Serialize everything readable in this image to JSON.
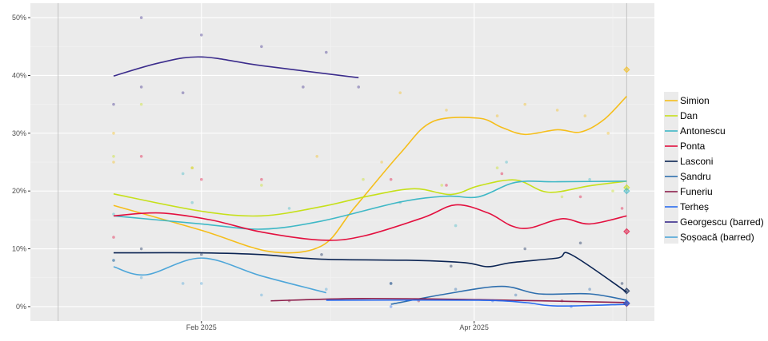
{
  "chart_data": {
    "type": "line",
    "title": "",
    "xlabel": "",
    "ylabel": "",
    "ylim": [
      -2.5,
      52.5
    ],
    "xlim": [
      "2024-12-26",
      "2025-05-10"
    ],
    "grid": true,
    "legend_position": "right",
    "y_ticks": [
      {
        "v": 0,
        "label": "0%"
      },
      {
        "v": 10,
        "label": "10%"
      },
      {
        "v": 20,
        "label": "20%"
      },
      {
        "v": 30,
        "label": "30%"
      },
      {
        "v": 40,
        "label": "40%"
      },
      {
        "v": 50,
        "label": "50%"
      }
    ],
    "x_ticks": [
      {
        "date": "2025-02-01",
        "label": "Feb 2025"
      },
      {
        "date": "2025-04-01",
        "label": "Apr 2025"
      }
    ],
    "vertical_markers": [
      "2025-01-01",
      "2025-05-04"
    ],
    "series": [
      {
        "name": "Simion",
        "color": "#f5be1b",
        "trend": [
          [
            "2025-01-13",
            17.5
          ],
          [
            "2025-02-01",
            13.2
          ],
          [
            "2025-02-16",
            9.5
          ],
          [
            "2025-02-27",
            10.5
          ],
          [
            "2025-03-06",
            17
          ],
          [
            "2025-03-16",
            26.5
          ],
          [
            "2025-03-23",
            32
          ],
          [
            "2025-04-02",
            32.6
          ],
          [
            "2025-04-07",
            31
          ],
          [
            "2025-04-12",
            29.8
          ],
          [
            "2025-04-19",
            30.6
          ],
          [
            "2025-04-24",
            30.2
          ],
          [
            "2025-04-29",
            32.3
          ],
          [
            "2025-05-04",
            36.4
          ]
        ],
        "points": [
          [
            "2025-01-13",
            30
          ],
          [
            "2025-01-13",
            25
          ],
          [
            "2025-01-30",
            24
          ],
          [
            "2025-02-26",
            26
          ],
          [
            "2025-03-12",
            25
          ],
          [
            "2025-03-16",
            37
          ],
          [
            "2025-03-26",
            34
          ],
          [
            "2025-04-06",
            33
          ],
          [
            "2025-04-12",
            35
          ],
          [
            "2025-04-19",
            34
          ],
          [
            "2025-04-25",
            33
          ],
          [
            "2025-04-30",
            30
          ]
        ],
        "result": 41
      },
      {
        "name": "Dan",
        "color": "#c6e01a",
        "trend": [
          [
            "2025-01-13",
            19.5
          ],
          [
            "2025-02-01",
            16.5
          ],
          [
            "2025-02-14",
            15.7
          ],
          [
            "2025-02-27",
            17.3
          ],
          [
            "2025-03-09",
            19.1
          ],
          [
            "2025-03-19",
            20.4
          ],
          [
            "2025-03-27",
            19.4
          ],
          [
            "2025-04-02",
            20.9
          ],
          [
            "2025-04-10",
            21.9
          ],
          [
            "2025-04-17",
            19.8
          ],
          [
            "2025-04-26",
            20.9
          ],
          [
            "2025-05-04",
            21.7
          ]
        ],
        "points": [
          [
            "2025-01-13",
            26
          ],
          [
            "2025-01-19",
            35
          ],
          [
            "2025-01-30",
            24
          ],
          [
            "2025-02-14",
            21
          ],
          [
            "2025-03-08",
            22
          ],
          [
            "2025-03-25",
            21
          ],
          [
            "2025-04-06",
            24
          ],
          [
            "2025-04-20",
            19
          ],
          [
            "2025-05-01",
            20
          ]
        ],
        "result": 20.6
      },
      {
        "name": "Antonescu",
        "color": "#3fb8c6",
        "trend": [
          [
            "2025-01-13",
            15.7
          ],
          [
            "2025-02-01",
            14.3
          ],
          [
            "2025-02-14",
            13.4
          ],
          [
            "2025-02-27",
            14.8
          ],
          [
            "2025-03-16",
            18.1
          ],
          [
            "2025-03-26",
            19.1
          ],
          [
            "2025-04-02",
            19
          ],
          [
            "2025-04-10",
            21.5
          ],
          [
            "2025-04-19",
            21.6
          ],
          [
            "2025-05-04",
            21.7
          ]
        ],
        "points": [
          [
            "2025-01-13",
            16
          ],
          [
            "2025-01-28",
            23
          ],
          [
            "2025-01-30",
            18
          ],
          [
            "2025-02-20",
            17
          ],
          [
            "2025-03-16",
            18
          ],
          [
            "2025-03-28",
            14
          ],
          [
            "2025-04-08",
            25
          ],
          [
            "2025-04-26",
            22
          ]
        ],
        "result": 20
      },
      {
        "name": "Ponta",
        "color": "#e3103f",
        "trend": [
          [
            "2025-01-13",
            15.7
          ],
          [
            "2025-01-23",
            16.2
          ],
          [
            "2025-02-03",
            15
          ],
          [
            "2025-02-14",
            12.9
          ],
          [
            "2025-02-27",
            11.5
          ],
          [
            "2025-03-08",
            12.2
          ],
          [
            "2025-03-21",
            15.4
          ],
          [
            "2025-03-28",
            17.6
          ],
          [
            "2025-04-04",
            16.2
          ],
          [
            "2025-04-09",
            14
          ],
          [
            "2025-04-13",
            13.6
          ],
          [
            "2025-04-20",
            15.2
          ],
          [
            "2025-04-26",
            14.3
          ],
          [
            "2025-05-04",
            15.7
          ]
        ],
        "points": [
          [
            "2025-01-13",
            12
          ],
          [
            "2025-01-19",
            26
          ],
          [
            "2025-02-01",
            22
          ],
          [
            "2025-02-14",
            22
          ],
          [
            "2025-03-14",
            22
          ],
          [
            "2025-03-26",
            21
          ],
          [
            "2025-04-07",
            23
          ],
          [
            "2025-04-24",
            19
          ],
          [
            "2025-05-03",
            17
          ]
        ],
        "result": 13
      },
      {
        "name": "Lasconi",
        "color": "#0b2453",
        "trend": [
          [
            "2025-01-13",
            9.3
          ],
          [
            "2025-02-01",
            9.3
          ],
          [
            "2025-02-14",
            9.0
          ],
          [
            "2025-02-27",
            8.2
          ],
          [
            "2025-03-19",
            8.0
          ],
          [
            "2025-03-30",
            7.6
          ],
          [
            "2025-04-04",
            6.9
          ],
          [
            "2025-04-09",
            7.6
          ],
          [
            "2025-04-19",
            8.4
          ],
          [
            "2025-04-22",
            9.0
          ],
          [
            "2025-05-04",
            2.5
          ]
        ],
        "points": [
          [
            "2025-01-13",
            8
          ],
          [
            "2025-01-19",
            10
          ],
          [
            "2025-02-01",
            9
          ],
          [
            "2025-02-27",
            9
          ],
          [
            "2025-03-14",
            4
          ],
          [
            "2025-03-27",
            7
          ],
          [
            "2025-04-12",
            10
          ],
          [
            "2025-04-24",
            11
          ],
          [
            "2025-05-03",
            4
          ]
        ],
        "result": 2.7
      },
      {
        "name": "Șandru",
        "color": "#2f6fae",
        "trend": [
          [
            "2025-03-14",
            0.4
          ],
          [
            "2025-03-26",
            2.2
          ],
          [
            "2025-04-07",
            3.5
          ],
          [
            "2025-04-15",
            2.2
          ],
          [
            "2025-04-26",
            2.2
          ],
          [
            "2025-05-04",
            1.1
          ]
        ],
        "points": [
          [
            "2025-03-14",
            4
          ],
          [
            "2025-03-28",
            3
          ],
          [
            "2025-04-10",
            2
          ],
          [
            "2025-04-26",
            3
          ]
        ],
        "result": 0.6
      },
      {
        "name": "Funeriu",
        "color": "#8e1f4c",
        "trend": [
          [
            "2025-02-16",
            1.0
          ],
          [
            "2025-03-08",
            1.4
          ],
          [
            "2025-04-02",
            1.2
          ],
          [
            "2025-05-04",
            0.7
          ]
        ],
        "points": [
          [
            "2025-02-20",
            1
          ],
          [
            "2025-03-20",
            1
          ],
          [
            "2025-04-20",
            1
          ]
        ],
        "result": 0.5
      },
      {
        "name": "Terheș",
        "color": "#2a6cf0",
        "trend": [
          [
            "2025-02-28",
            1.1
          ],
          [
            "2025-04-02",
            1.1
          ],
          [
            "2025-04-12",
            0.7
          ],
          [
            "2025-04-19",
            0.1
          ],
          [
            "2025-05-04",
            0.4
          ]
        ],
        "points": [
          [
            "2025-03-14",
            0
          ],
          [
            "2025-04-05",
            1
          ],
          [
            "2025-04-22",
            0
          ]
        ],
        "result": 0.6
      },
      {
        "name": "Georgescu (barred)",
        "color": "#3b2c8c",
        "trend": [
          [
            "2025-01-13",
            39.9
          ],
          [
            "2025-01-23",
            42.2
          ],
          [
            "2025-02-01",
            43.2
          ],
          [
            "2025-02-14",
            41.7
          ],
          [
            "2025-03-07",
            39.6
          ]
        ],
        "points": [
          [
            "2025-01-13",
            35
          ],
          [
            "2025-01-19",
            50
          ],
          [
            "2025-01-19",
            38
          ],
          [
            "2025-01-28",
            37
          ],
          [
            "2025-02-01",
            47
          ],
          [
            "2025-02-14",
            45
          ],
          [
            "2025-02-23",
            38
          ],
          [
            "2025-02-28",
            44
          ],
          [
            "2025-03-07",
            38
          ]
        ],
        "result": null
      },
      {
        "name": "Șoșoacă (barred)",
        "color": "#4ea6d9",
        "trend": [
          [
            "2025-01-13",
            6.9
          ],
          [
            "2025-01-20",
            5.5
          ],
          [
            "2025-02-01",
            8.4
          ],
          [
            "2025-02-14",
            5.3
          ],
          [
            "2025-02-28",
            2.4
          ]
        ],
        "points": [
          [
            "2025-01-13",
            8
          ],
          [
            "2025-01-19",
            5
          ],
          [
            "2025-01-28",
            4
          ],
          [
            "2025-02-01",
            4
          ],
          [
            "2025-02-14",
            2
          ],
          [
            "2025-02-28",
            3
          ]
        ],
        "result": null
      }
    ]
  }
}
